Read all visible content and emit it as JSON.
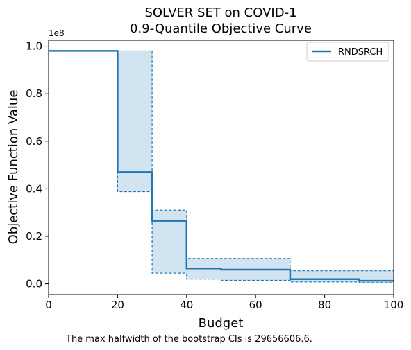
{
  "chart_data": {
    "type": "line",
    "title_line1": "SOLVER SET on COVID-1",
    "title_line2": "0.9-Quantile Objective Curve",
    "xlabel": "Budget",
    "ylabel": "Objective Function Value",
    "y_offset_label": "1e8",
    "xlim": [
      0,
      100
    ],
    "ylim": [
      -0.045,
      1.025
    ],
    "x_ticks": [
      0,
      20,
      40,
      60,
      80,
      100
    ],
    "x_tick_labels": [
      "0",
      "20",
      "40",
      "60",
      "80",
      "100"
    ],
    "y_ticks": [
      0.0,
      0.2,
      0.4,
      0.6,
      0.8,
      1.0
    ],
    "y_tick_labels": [
      "0.0",
      "0.2",
      "0.4",
      "0.6",
      "0.8",
      "1.0"
    ],
    "grid": false,
    "legend_position": "top-right",
    "series": [
      {
        "name": "RNDSRCH",
        "color": "#1f77b4",
        "step": {
          "x": [
            0,
            20,
            30,
            40,
            50,
            70,
            90,
            100
          ],
          "y": [
            0.98,
            0.47,
            0.265,
            0.065,
            0.06,
            0.02,
            0.013,
            0.013
          ]
        },
        "ci_upper": {
          "x": [
            0,
            20,
            30,
            40,
            50,
            70,
            90,
            100
          ],
          "y": [
            0.98,
            0.98,
            0.31,
            0.107,
            0.107,
            0.055,
            0.055,
            0.055
          ]
        },
        "ci_lower": {
          "x": [
            0,
            20,
            30,
            40,
            50,
            70,
            90,
            100
          ],
          "y": [
            0.98,
            0.388,
            0.045,
            0.02,
            0.015,
            0.008,
            0.005,
            0.005
          ]
        }
      }
    ],
    "footnote": "The max halfwidth of the bootstrap CIs is 29656606.6."
  }
}
